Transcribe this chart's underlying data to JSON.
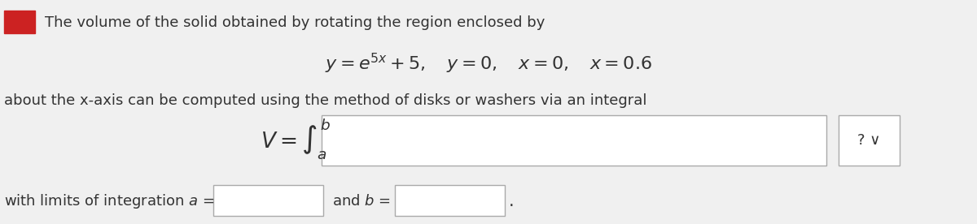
{
  "bg_color": "#f0f0f0",
  "text_color": "#333333",
  "red_square_color": "#cc2222",
  "line1_text": "The volume of the solid obtained by rotating the region enclosed by",
  "line2_math": "y = e^{5x} + 5, \\quad y = 0, \\quad x = 0, \\quad x = 0.6",
  "line3_text": "about the x-axis can be computed using the method of disks or washers via an integral",
  "line4_math_left": "V = \\int_a^b",
  "line5_text_left": "with limits of integration $a$ =",
  "line5_text_mid": "and $b$ =",
  "input_box_color": "#ffffff",
  "input_box_border": "#aaaaaa",
  "question_mark": "?",
  "font_size_main": 13,
  "font_size_math": 15
}
